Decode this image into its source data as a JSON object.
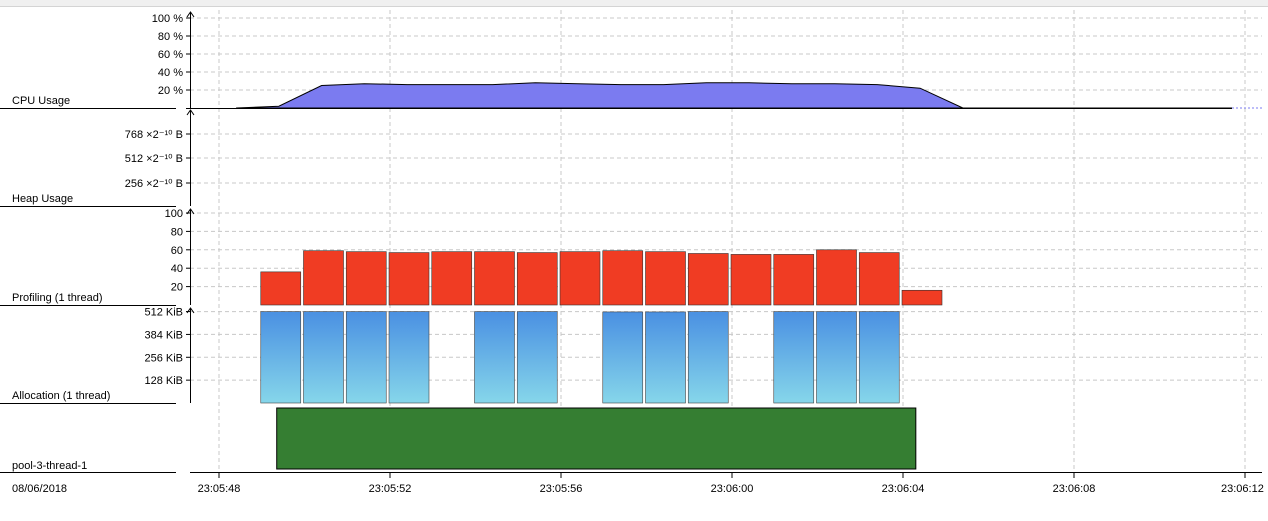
{
  "date_label": "08/06/2018",
  "time_ticks": [
    "23:05:48",
    "23:05:52",
    "23:05:56",
    "23:06:00",
    "23:06:04",
    "23:06:08",
    "23:06:12"
  ],
  "colors": {
    "cpu_fill": "#7b7bf0",
    "profiling_bar": "#f03c23",
    "allocation_top": "#4a90e2",
    "allocation_bottom": "#86d6ea",
    "thread_bar": "#357e32",
    "grid": "#c8c8c8"
  },
  "chart_data": [
    {
      "type": "area",
      "title": "CPU Usage",
      "y_ticks": [
        "100 %",
        "80 %",
        "60 %",
        "40 %",
        "20 %"
      ],
      "y_tick_values": [
        100,
        80,
        60,
        40,
        20
      ],
      "ylim": [
        0,
        100
      ],
      "grid": true,
      "x_seconds_from_23:05:48": [
        0.4,
        1.4,
        2.4,
        3.4,
        4.4,
        5.4,
        6.4,
        7.4,
        8.4,
        9.4,
        10.4,
        11.4,
        12.4,
        13.4,
        14.4,
        15.4,
        16.4,
        17.4
      ],
      "values": [
        0,
        2,
        25,
        27,
        26,
        26,
        26,
        28,
        27,
        26,
        26,
        28,
        28,
        27,
        27,
        26,
        22,
        0
      ]
    },
    {
      "type": "line",
      "title": "Heap Usage",
      "y_ticks": [
        "768 ×2⁻¹⁰ B",
        "512 ×2⁻¹⁰ B",
        "256 ×2⁻¹⁰ B"
      ],
      "grid": true
    },
    {
      "type": "bar",
      "title": "Profiling (1 thread)",
      "y_ticks": [
        "100",
        "80",
        "60",
        "40",
        "20"
      ],
      "y_tick_values": [
        100,
        80,
        60,
        40,
        20
      ],
      "ylim": [
        0,
        100
      ],
      "grid": true,
      "x_seconds_from_23:05:48": [
        1,
        2,
        3,
        4,
        5,
        6,
        7,
        8,
        9,
        10,
        11,
        12,
        13,
        14,
        15,
        16
      ],
      "values": [
        36,
        59,
        58,
        57,
        58,
        58,
        57,
        58,
        59,
        58,
        56,
        55,
        55,
        60,
        57,
        16
      ]
    },
    {
      "type": "bar",
      "title": "Allocation (1 thread)",
      "y_ticks": [
        "512 KiB",
        "384 KiB",
        "256 KiB",
        "128 KiB"
      ],
      "y_tick_values": [
        512,
        384,
        256,
        128
      ],
      "ylim": [
        0,
        560
      ],
      "grid": true,
      "x_seconds_from_23:05:48": [
        1,
        2,
        3,
        4,
        6,
        7,
        9,
        10,
        11,
        13,
        14,
        15
      ],
      "values": [
        512,
        512,
        512,
        512,
        512,
        512,
        510,
        510,
        512,
        512,
        512,
        512
      ]
    },
    {
      "type": "bar",
      "title": "pool-3-thread-1",
      "start_seconds_from_23:05:48": 1.35,
      "end_seconds_from_23:05:48": 16.3
    }
  ]
}
